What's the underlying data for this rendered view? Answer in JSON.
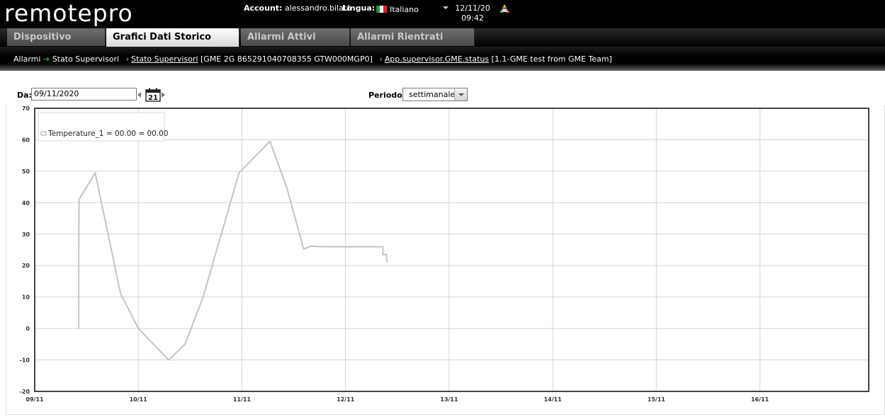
{
  "header": {
    "logo_text": "remotepro",
    "account_label": "Account:",
    "account_value": "alessandro.bilato",
    "language_label": "Lingua:",
    "language_value": "Italiano",
    "date": "12/11/20",
    "time": "09:42"
  },
  "tabs": [
    {
      "label": "Dispositivo",
      "active": false
    },
    {
      "label": "Grafici Dati Storico",
      "active": true
    },
    {
      "label": "Allarmi Attivi",
      "active": false
    },
    {
      "label": "Allarmi Rientrati",
      "active": false
    }
  ],
  "breadcrumb": {
    "item1": "Allarmi",
    "item2": "Stato Supervisori",
    "link1": "Stato Supervisori",
    "text1": "[GME 2G 865291040708355 GTW000MGP0]",
    "link2": "App.supervisor.GME.status",
    "text2": "[1.1-GME test from GME Team]"
  },
  "controls": {
    "from_label": "Da:",
    "from_value": "09/11/2020",
    "calendar_day": "21",
    "period_label": "Periodo:",
    "period_value": "settimanale"
  },
  "colors": {
    "series": "#c4c4c4",
    "grid": "#d4d4d4",
    "plot_border": "#444444",
    "active_tab": "#ffffff"
  },
  "chart_data": {
    "type": "line",
    "xlim": [
      "09/11",
      "16/11"
    ],
    "ylim": [
      -20,
      70
    ],
    "yticks": [
      -20,
      -10,
      0,
      10,
      20,
      30,
      40,
      50,
      60,
      70
    ],
    "xticks": [
      "09/11",
      "10/11",
      "11/11",
      "12/11",
      "13/11",
      "14/11",
      "15/11",
      "16/11"
    ],
    "grid": true,
    "legend_position": "top-left",
    "series": [
      {
        "name": "Temperature_1 = 00.00 = 00.00",
        "points": [
          {
            "x": "09/11 10:12",
            "y": 0
          },
          {
            "x": "09/11 10:12",
            "y": 25
          },
          {
            "x": "09/11 10:14",
            "y": 31
          },
          {
            "x": "09/11 10:17",
            "y": 41
          },
          {
            "x": "09/11 14:00",
            "y": 49.5
          },
          {
            "x": "09/11 19:55",
            "y": 11
          },
          {
            "x": "10/11 00:00",
            "y": 0
          },
          {
            "x": "10/11 07:00",
            "y": -10
          },
          {
            "x": "10/11 10:50",
            "y": -5
          },
          {
            "x": "10/11 15:00",
            "y": 10
          },
          {
            "x": "10/11 23:20",
            "y": 49.5
          },
          {
            "x": "11/11 06:30",
            "y": 59.5
          },
          {
            "x": "11/11 10:20",
            "y": 45
          },
          {
            "x": "11/11 14:20",
            "y": 25.2
          },
          {
            "x": "11/11 16:00",
            "y": 26.2
          },
          {
            "x": "11/11 18:40",
            "y": 26
          },
          {
            "x": "12/11 08:40",
            "y": 26
          },
          {
            "x": "12/11 08:40",
            "y": 23.5
          },
          {
            "x": "12/11 09:30",
            "y": 23.5
          },
          {
            "x": "12/11 09:30",
            "y": 21.8
          },
          {
            "x": "12/11 09:42",
            "y": 21.2
          }
        ]
      }
    ]
  }
}
